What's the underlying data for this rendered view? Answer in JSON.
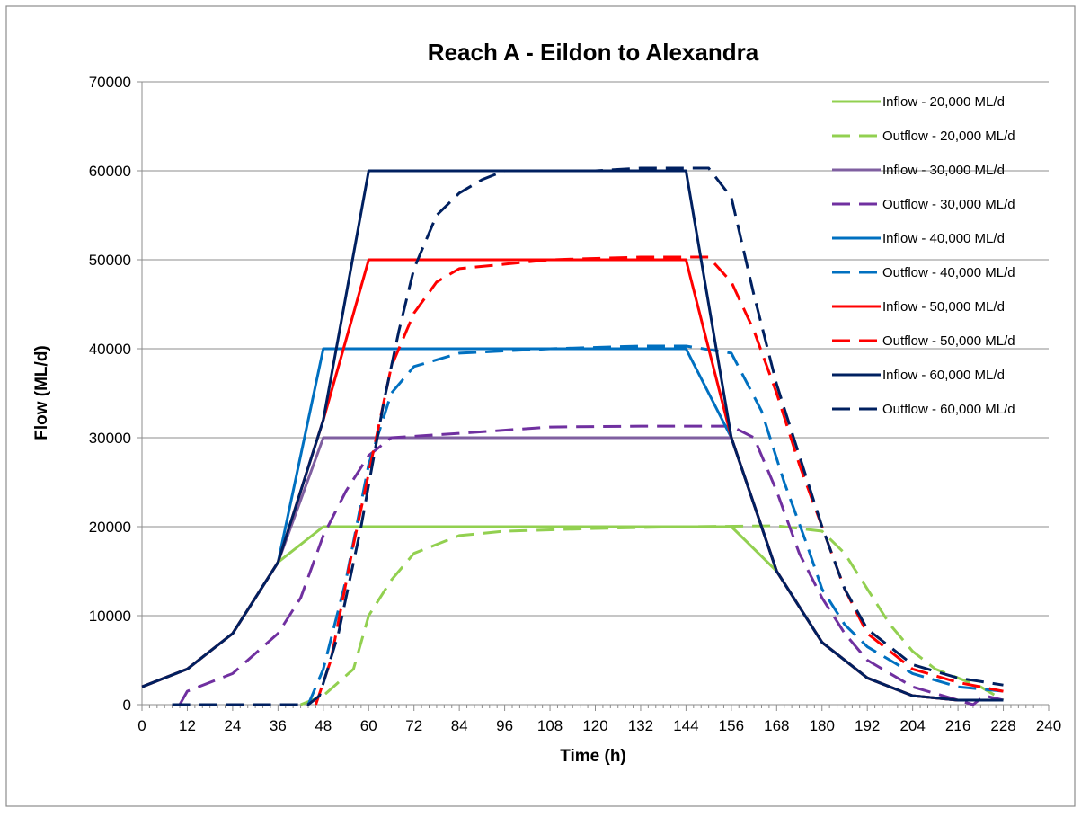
{
  "chart_data": {
    "type": "line",
    "title": "Reach A - Eildon to Alexandra",
    "xlabel": "Time (h)",
    "ylabel": "Flow (ML/d)",
    "xlim": [
      0,
      240
    ],
    "ylim": [
      0,
      70000
    ],
    "x_ticks": [
      0,
      12,
      24,
      36,
      48,
      60,
      72,
      84,
      96,
      108,
      120,
      132,
      144,
      156,
      168,
      180,
      192,
      204,
      216,
      228,
      240
    ],
    "y_ticks": [
      0,
      10000,
      20000,
      30000,
      40000,
      50000,
      60000,
      70000
    ],
    "grid": "horizontal",
    "legend_position": "right",
    "series": [
      {
        "name": "Inflow - 20,000 ML/d",
        "color": "#92D050",
        "dash": "solid",
        "points": [
          [
            0,
            2000
          ],
          [
            12,
            4000
          ],
          [
            24,
            8000
          ],
          [
            36,
            16000
          ],
          [
            48,
            20000
          ],
          [
            60,
            20000
          ],
          [
            144,
            20000
          ],
          [
            156,
            20000
          ],
          [
            168,
            15000
          ],
          [
            180,
            7000
          ],
          [
            192,
            3000
          ],
          [
            204,
            1000
          ],
          [
            216,
            500
          ],
          [
            228,
            500
          ]
        ]
      },
      {
        "name": "Outflow - 20,000 ML/d",
        "color": "#92D050",
        "dash": "dashed",
        "points": [
          [
            42,
            0
          ],
          [
            48,
            1000
          ],
          [
            56,
            4000
          ],
          [
            60,
            10000
          ],
          [
            66,
            14000
          ],
          [
            72,
            17000
          ],
          [
            84,
            19000
          ],
          [
            96,
            19500
          ],
          [
            120,
            19800
          ],
          [
            144,
            20000
          ],
          [
            168,
            20100
          ],
          [
            180,
            19500
          ],
          [
            186,
            17000
          ],
          [
            192,
            13000
          ],
          [
            198,
            9000
          ],
          [
            204,
            6000
          ],
          [
            210,
            4000
          ],
          [
            216,
            3000
          ],
          [
            222,
            2000
          ],
          [
            228,
            500
          ]
        ]
      },
      {
        "name": "Inflow - 30,000 ML/d",
        "color": "#7F5FA0",
        "dash": "solid",
        "points": [
          [
            0,
            2000
          ],
          [
            12,
            4000
          ],
          [
            24,
            8000
          ],
          [
            36,
            16000
          ],
          [
            48,
            30000
          ],
          [
            60,
            30000
          ],
          [
            156,
            30000
          ],
          [
            168,
            15000
          ],
          [
            180,
            7000
          ],
          [
            192,
            3000
          ],
          [
            204,
            1000
          ],
          [
            216,
            500
          ],
          [
            228,
            500
          ]
        ]
      },
      {
        "name": "Outflow - 30,000 ML/d",
        "color": "#7030A0",
        "dash": "dashed",
        "points": [
          [
            10,
            0
          ],
          [
            12,
            1500
          ],
          [
            24,
            3500
          ],
          [
            36,
            8000
          ],
          [
            42,
            12000
          ],
          [
            48,
            19000
          ],
          [
            54,
            24000
          ],
          [
            60,
            28000
          ],
          [
            66,
            30000
          ],
          [
            84,
            30500
          ],
          [
            108,
            31200
          ],
          [
            132,
            31300
          ],
          [
            156,
            31300
          ],
          [
            162,
            30000
          ],
          [
            168,
            24000
          ],
          [
            174,
            17000
          ],
          [
            180,
            12000
          ],
          [
            186,
            8000
          ],
          [
            192,
            5000
          ],
          [
            204,
            2000
          ],
          [
            216,
            500
          ],
          [
            220,
            0
          ],
          [
            223,
            1000
          ],
          [
            228,
            500
          ]
        ]
      },
      {
        "name": "Inflow - 40,000 ML/d",
        "color": "#0070C0",
        "dash": "solid",
        "points": [
          [
            0,
            2000
          ],
          [
            12,
            4000
          ],
          [
            24,
            8000
          ],
          [
            36,
            16000
          ],
          [
            48,
            40000
          ],
          [
            60,
            40000
          ],
          [
            144,
            40000
          ],
          [
            156,
            30000
          ],
          [
            168,
            15000
          ],
          [
            180,
            7000
          ],
          [
            192,
            3000
          ],
          [
            204,
            1000
          ],
          [
            216,
            500
          ],
          [
            228,
            500
          ]
        ]
      },
      {
        "name": "Outflow - 40,000 ML/d",
        "color": "#0070C0",
        "dash": "dashed",
        "points": [
          [
            44,
            0
          ],
          [
            48,
            4000
          ],
          [
            54,
            14000
          ],
          [
            60,
            27000
          ],
          [
            66,
            35000
          ],
          [
            72,
            38000
          ],
          [
            84,
            39500
          ],
          [
            108,
            40000
          ],
          [
            132,
            40300
          ],
          [
            144,
            40300
          ],
          [
            156,
            39500
          ],
          [
            164,
            33000
          ],
          [
            170,
            25000
          ],
          [
            176,
            18000
          ],
          [
            180,
            13000
          ],
          [
            186,
            9000
          ],
          [
            192,
            6500
          ],
          [
            204,
            3500
          ],
          [
            216,
            2000
          ],
          [
            228,
            1500
          ]
        ]
      },
      {
        "name": "Inflow - 50,000 ML/d",
        "color": "#FF0000",
        "dash": "solid",
        "points": [
          [
            0,
            2000
          ],
          [
            12,
            4000
          ],
          [
            24,
            8000
          ],
          [
            36,
            16000
          ],
          [
            48,
            32000
          ],
          [
            60,
            50000
          ],
          [
            144,
            50000
          ],
          [
            156,
            30000
          ],
          [
            168,
            15000
          ],
          [
            180,
            7000
          ],
          [
            192,
            3000
          ],
          [
            204,
            1000
          ],
          [
            216,
            500
          ],
          [
            228,
            500
          ]
        ]
      },
      {
        "name": "Outflow - 50,000 ML/d",
        "color": "#FF0000",
        "dash": "dashed",
        "points": [
          [
            46,
            0
          ],
          [
            50,
            5000
          ],
          [
            56,
            18000
          ],
          [
            62,
            30000
          ],
          [
            66,
            38000
          ],
          [
            72,
            44000
          ],
          [
            78,
            47500
          ],
          [
            84,
            49000
          ],
          [
            96,
            49500
          ],
          [
            108,
            50000
          ],
          [
            132,
            50300
          ],
          [
            144,
            50300
          ],
          [
            150,
            50300
          ],
          [
            156,
            47500
          ],
          [
            162,
            42000
          ],
          [
            168,
            35000
          ],
          [
            174,
            27000
          ],
          [
            180,
            20000
          ],
          [
            186,
            13000
          ],
          [
            192,
            8000
          ],
          [
            204,
            4000
          ],
          [
            216,
            2500
          ],
          [
            228,
            1500
          ]
        ]
      },
      {
        "name": "Inflow - 60,000 ML/d",
        "color": "#002060",
        "dash": "solid",
        "points": [
          [
            0,
            2000
          ],
          [
            12,
            4000
          ],
          [
            24,
            8000
          ],
          [
            36,
            16000
          ],
          [
            48,
            32000
          ],
          [
            60,
            60000
          ],
          [
            144,
            60000
          ],
          [
            156,
            30000
          ],
          [
            168,
            15000
          ],
          [
            180,
            7000
          ],
          [
            192,
            3000
          ],
          [
            204,
            1000
          ],
          [
            216,
            500
          ],
          [
            228,
            500
          ]
        ]
      },
      {
        "name": "Outflow - 60,000 ML/d",
        "color": "#002060",
        "dash": "dashed",
        "points": [
          [
            8,
            0
          ],
          [
            24,
            0
          ],
          [
            36,
            0
          ],
          [
            44,
            0
          ],
          [
            47,
            1000
          ],
          [
            52,
            8000
          ],
          [
            58,
            20000
          ],
          [
            64,
            34000
          ],
          [
            68,
            42000
          ],
          [
            72,
            49000
          ],
          [
            78,
            55000
          ],
          [
            84,
            57500
          ],
          [
            90,
            59000
          ],
          [
            96,
            60000
          ],
          [
            120,
            60000
          ],
          [
            132,
            60300
          ],
          [
            144,
            60300
          ],
          [
            150,
            60300
          ],
          [
            156,
            57000
          ],
          [
            162,
            46000
          ],
          [
            168,
            36000
          ],
          [
            174,
            28000
          ],
          [
            180,
            20000
          ],
          [
            186,
            13000
          ],
          [
            192,
            8500
          ],
          [
            204,
            4500
          ],
          [
            216,
            3000
          ],
          [
            228,
            2200
          ]
        ]
      }
    ]
  }
}
